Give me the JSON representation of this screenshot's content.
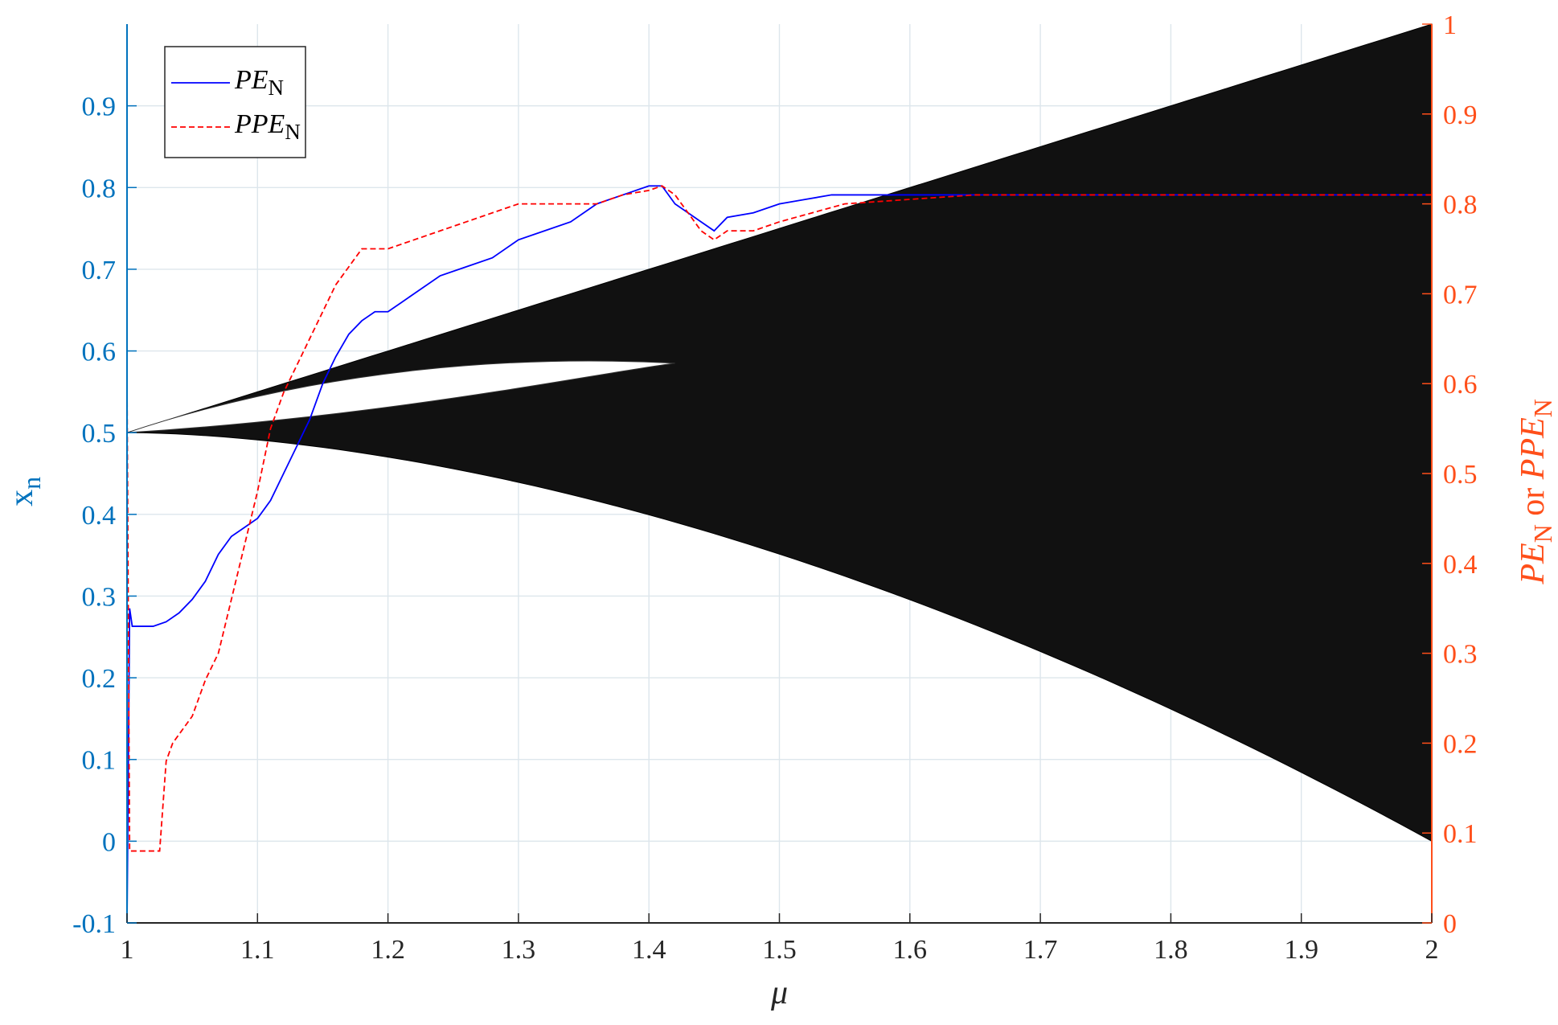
{
  "chart_data": {
    "type": "line",
    "xlabel": "μ",
    "ylabel_left": {
      "main": "x",
      "sub": "n"
    },
    "ylabel_right": {
      "p1": "PE",
      "s1": "N",
      "mid": " or ",
      "p2": "PPE",
      "s2": "N"
    },
    "xlim": [
      1,
      2
    ],
    "ylim_left": [
      -0.1,
      1.0
    ],
    "ylim_right": [
      0,
      1
    ],
    "x_ticks": [
      "1",
      "1.1",
      "1.2",
      "1.3",
      "1.4",
      "1.5",
      "1.6",
      "1.7",
      "1.8",
      "1.9",
      "2"
    ],
    "x_tick_values": [
      1,
      1.1,
      1.2,
      1.3,
      1.4,
      1.5,
      1.6,
      1.7,
      1.8,
      1.9,
      2
    ],
    "y_left_ticks": [
      "-0.1",
      "0",
      "0.1",
      "0.2",
      "0.3",
      "0.4",
      "0.5",
      "0.6",
      "0.7",
      "0.8",
      "0.9"
    ],
    "y_left_tick_values": [
      -0.1,
      0,
      0.1,
      0.2,
      0.3,
      0.4,
      0.5,
      0.6,
      0.7,
      0.8,
      0.9
    ],
    "y_right_ticks": [
      "0",
      "0.1",
      "0.2",
      "0.3",
      "0.4",
      "0.5",
      "0.6",
      "0.7",
      "0.8",
      "0.9",
      "1"
    ],
    "y_right_tick_values": [
      0,
      0.1,
      0.2,
      0.3,
      0.4,
      0.5,
      0.6,
      0.7,
      0.8,
      0.9,
      1
    ],
    "grid": true,
    "legend_position": "top-left",
    "colors": {
      "left_axis": "#0072BD",
      "right_axis": "#FF4F1A",
      "pe_line": "#0000FF",
      "ppe_line": "#FF0000",
      "bifurcation": "#000000",
      "grid": "#DDE6EC"
    },
    "series": [
      {
        "name": "PE",
        "name_sub": "N",
        "axis": "right",
        "style": "solid",
        "x": [
          1.0,
          1.002,
          1.004,
          1.01,
          1.02,
          1.03,
          1.04,
          1.05,
          1.06,
          1.07,
          1.08,
          1.09,
          1.1,
          1.11,
          1.12,
          1.13,
          1.14,
          1.15,
          1.16,
          1.17,
          1.18,
          1.19,
          1.2,
          1.21,
          1.22,
          1.24,
          1.26,
          1.28,
          1.3,
          1.32,
          1.34,
          1.36,
          1.38,
          1.4,
          1.41,
          1.42,
          1.43,
          1.44,
          1.45,
          1.46,
          1.48,
          1.5,
          1.52,
          1.54,
          1.56,
          1.58,
          1.6,
          1.65,
          1.7,
          1.75,
          1.8,
          1.85,
          1.9,
          1.95,
          2.0
        ],
        "y": [
          0.0,
          0.35,
          0.33,
          0.33,
          0.33,
          0.335,
          0.345,
          0.36,
          0.38,
          0.41,
          0.43,
          0.44,
          0.45,
          0.47,
          0.5,
          0.53,
          0.56,
          0.6,
          0.63,
          0.655,
          0.67,
          0.68,
          0.68,
          0.69,
          0.7,
          0.72,
          0.73,
          0.74,
          0.76,
          0.77,
          0.78,
          0.8,
          0.81,
          0.82,
          0.82,
          0.8,
          0.79,
          0.78,
          0.77,
          0.785,
          0.79,
          0.8,
          0.805,
          0.81,
          0.81,
          0.81,
          0.81,
          0.81,
          0.81,
          0.81,
          0.81,
          0.81,
          0.81,
          0.81,
          0.81
        ]
      },
      {
        "name": "PPE",
        "name_sub": "N",
        "axis": "right",
        "style": "dashed",
        "x": [
          1.0,
          1.002,
          1.005,
          1.01,
          1.02,
          1.025,
          1.03,
          1.035,
          1.04,
          1.05,
          1.06,
          1.07,
          1.08,
          1.09,
          1.1,
          1.11,
          1.12,
          1.13,
          1.14,
          1.15,
          1.16,
          1.17,
          1.18,
          1.2,
          1.22,
          1.24,
          1.26,
          1.28,
          1.3,
          1.32,
          1.34,
          1.36,
          1.38,
          1.4,
          1.41,
          1.42,
          1.43,
          1.44,
          1.45,
          1.46,
          1.48,
          1.5,
          1.55,
          1.6,
          1.65,
          1.7,
          1.8,
          1.9,
          2.0
        ],
        "y": [
          0.6,
          0.08,
          0.08,
          0.08,
          0.08,
          0.08,
          0.18,
          0.2,
          0.21,
          0.23,
          0.27,
          0.3,
          0.36,
          0.42,
          0.48,
          0.55,
          0.59,
          0.62,
          0.65,
          0.68,
          0.71,
          0.73,
          0.75,
          0.75,
          0.76,
          0.77,
          0.78,
          0.79,
          0.8,
          0.8,
          0.8,
          0.8,
          0.81,
          0.815,
          0.82,
          0.81,
          0.79,
          0.77,
          0.76,
          0.77,
          0.77,
          0.78,
          0.8,
          0.805,
          0.81,
          0.81,
          0.81,
          0.81,
          0.81
        ]
      }
    ]
  }
}
